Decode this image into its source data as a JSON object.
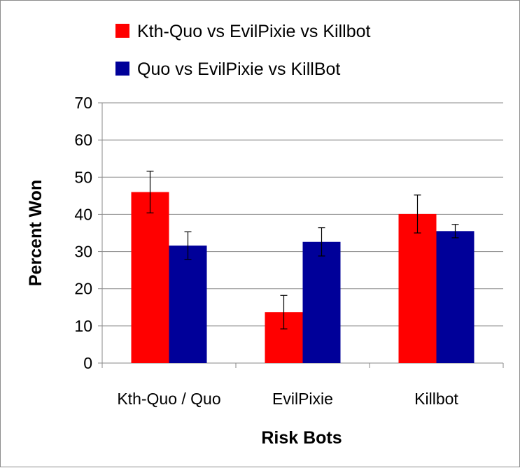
{
  "chart_data": {
    "type": "bar",
    "title": "",
    "xlabel": "Risk Bots",
    "ylabel": "Percent Won",
    "ylim": [
      0,
      70
    ],
    "yticks": [
      0,
      10,
      20,
      30,
      40,
      50,
      60,
      70
    ],
    "grid": true,
    "legend_position": "top",
    "categories": [
      "Kth-Quo / Quo",
      "EvilPixie",
      "Killbot"
    ],
    "series": [
      {
        "name": "Kth-Quo vs EvilPixie vs Killbot",
        "color": "#ff0000",
        "values": [
          46,
          13.7,
          40.1
        ],
        "error": [
          5.6,
          4.5,
          5.1
        ]
      },
      {
        "name": "Quo vs EvilPixie vs KillBot",
        "color": "#000099",
        "values": [
          31.6,
          32.6,
          35.5
        ],
        "error": [
          3.7,
          3.8,
          1.8
        ]
      }
    ]
  }
}
